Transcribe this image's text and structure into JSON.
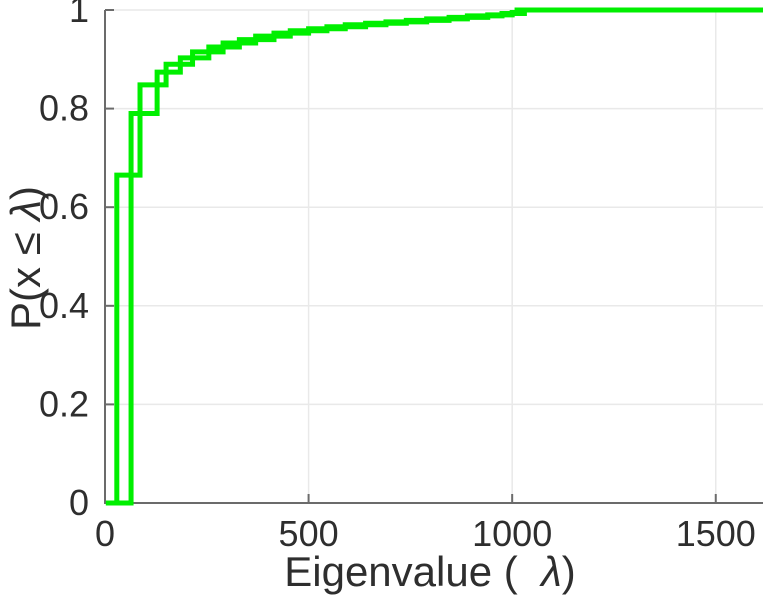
{
  "figure": {
    "title": "",
    "background": "#ffffff"
  },
  "chart_data": {
    "type": "line",
    "subtype": "ecdf-step",
    "title": "",
    "xlabel_parts": {
      "prefix": "Eigenvalue (  ",
      "lambda": "λ",
      "suffix": ")"
    },
    "ylabel_parts": {
      "prefix": "P(x ≤ ",
      "lambda": "λ",
      "suffix": ")"
    },
    "xlim": [
      0,
      1616
    ],
    "ylim": [
      0,
      1
    ],
    "grid": true,
    "legend": "none",
    "xticks": {
      "values": [
        0,
        500,
        1000,
        1500
      ],
      "labels": [
        "0",
        "500",
        "1000",
        "1500"
      ]
    },
    "yticks": {
      "values": [
        0,
        0.2,
        0.4,
        0.6,
        0.8,
        1
      ],
      "labels": [
        "0",
        "0.2",
        "0.4",
        "0.6",
        "0.8",
        "1"
      ]
    },
    "series": [
      {
        "name": "ecdf-curve-1",
        "start_x": 2,
        "end_x": 1616,
        "points": [
          [
            29,
            0.665
          ],
          [
            86,
            0.848
          ],
          [
            150,
            0.89
          ],
          [
            215,
            0.915
          ],
          [
            290,
            0.933
          ],
          [
            370,
            0.947
          ],
          [
            455,
            0.958
          ],
          [
            545,
            0.966
          ],
          [
            640,
            0.973
          ],
          [
            740,
            0.979
          ],
          [
            845,
            0.985
          ],
          [
            940,
            0.99
          ],
          [
            1000,
            0.995
          ],
          [
            1012,
            1.0
          ]
        ]
      },
      {
        "name": "ecdf-curve-2",
        "start_x": 29,
        "end_x": 1616,
        "points": [
          [
            64,
            0.79
          ],
          [
            128,
            0.874
          ],
          [
            185,
            0.903
          ],
          [
            255,
            0.925
          ],
          [
            330,
            0.94
          ],
          [
            415,
            0.953
          ],
          [
            500,
            0.962
          ],
          [
            590,
            0.97
          ],
          [
            690,
            0.976
          ],
          [
            790,
            0.982
          ],
          [
            890,
            0.988
          ],
          [
            975,
            0.993
          ],
          [
            1030,
            1.0
          ]
        ]
      }
    ],
    "colors": {
      "line": "#00ef00",
      "axis": "#6b6b6b",
      "grid": "#e9e9e9",
      "text": "#2e2e2e"
    },
    "line_width": 5
  }
}
